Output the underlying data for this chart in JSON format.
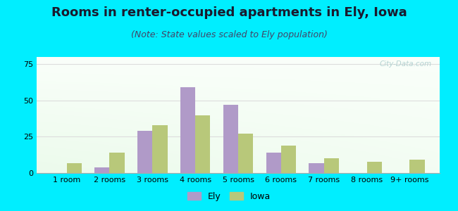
{
  "title": "Rooms in renter-occupied apartments in Ely, Iowa",
  "subtitle": "(Note: State values scaled to Ely population)",
  "categories": [
    "1 room",
    "2 rooms",
    "3 rooms",
    "4 rooms",
    "5 rooms",
    "6 rooms",
    "7 rooms",
    "8 rooms",
    "9+ rooms"
  ],
  "ely_values": [
    0,
    4,
    29,
    59,
    47,
    14,
    7,
    0,
    0
  ],
  "iowa_values": [
    7,
    14,
    33,
    40,
    27,
    19,
    10,
    8,
    9
  ],
  "ely_color": "#b09ac8",
  "iowa_color": "#b8c87a",
  "outer_background": "#00eeff",
  "ylim": [
    0,
    80
  ],
  "yticks": [
    0,
    25,
    50,
    75
  ],
  "grid_color": "#dddddd",
  "title_fontsize": 13,
  "subtitle_fontsize": 9,
  "tick_fontsize": 8,
  "legend_fontsize": 9,
  "watermark_text": "City-Data.com",
  "bar_width": 0.35
}
